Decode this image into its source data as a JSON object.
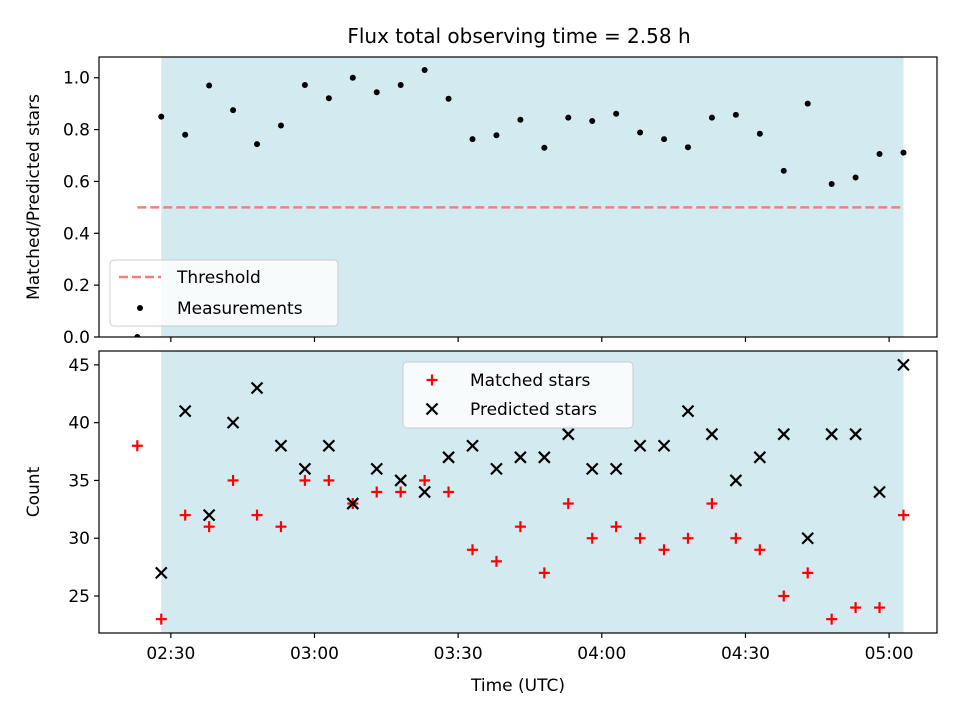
{
  "chart_data": [
    {
      "type": "scatter",
      "title": "Flux total observing time = 2.58 h",
      "xlabel": "",
      "ylabel": "Matched/Predicted stars",
      "xlim_minutes_since_midnight_utc": [
        135,
        310
      ],
      "ylim": [
        0,
        1.08
      ],
      "yticks": [
        0.0,
        0.2,
        0.4,
        0.6,
        0.8,
        1.0
      ],
      "ytick_labels": [
        "0.0",
        "0.2",
        "0.4",
        "0.6",
        "0.8",
        "1.0"
      ],
      "shaded_interval": [
        "02:28",
        "05:03"
      ],
      "shade_color": "#d4eaf1",
      "threshold": {
        "name": "Threshold",
        "value": 0.5,
        "x_range": [
          "02:23",
          "05:03"
        ],
        "color": "#f08080"
      },
      "series": [
        {
          "name": "Measurements",
          "color": "#000000",
          "x": [
            "02:23",
            "02:28",
            "02:33",
            "02:38",
            "02:43",
            "02:48",
            "02:53",
            "02:58",
            "03:03",
            "03:08",
            "03:13",
            "03:18",
            "03:23",
            "03:28",
            "03:33",
            "03:38",
            "03:43",
            "03:48",
            "03:53",
            "03:58",
            "04:03",
            "04:08",
            "04:13",
            "04:18",
            "04:23",
            "04:28",
            "04:33",
            "04:38",
            "04:43",
            "04:48",
            "04:53",
            "04:58",
            "05:03"
          ],
          "y": [
            0.0,
            0.85,
            0.78,
            0.97,
            0.875,
            0.744,
            0.816,
            0.972,
            0.921,
            1.0,
            0.944,
            0.972,
            1.03,
            0.919,
            0.763,
            0.778,
            0.838,
            0.73,
            0.846,
            0.833,
            0.861,
            0.789,
            0.763,
            0.732,
            0.846,
            0.857,
            0.784,
            0.641,
            0.9,
            0.59,
            0.615,
            0.706,
            0.711
          ]
        }
      ],
      "legend": {
        "placement": "lower-left",
        "entries": [
          "Threshold",
          "Measurements"
        ]
      }
    },
    {
      "type": "scatter",
      "title": "",
      "xlabel": "Time (UTC)",
      "ylabel": "Count",
      "xlim_minutes_since_midnight_utc": [
        135,
        310
      ],
      "xticks": [
        "02:30",
        "03:00",
        "03:30",
        "04:00",
        "04:30",
        "05:00"
      ],
      "ylim": [
        21.8,
        46.2
      ],
      "yticks": [
        25,
        30,
        35,
        40,
        45
      ],
      "ytick_labels": [
        "25",
        "30",
        "35",
        "40",
        "45"
      ],
      "shaded_interval": [
        "02:28",
        "05:03"
      ],
      "shade_color": "#d4eaf1",
      "series": [
        {
          "name": "Matched stars",
          "marker": "+",
          "color": "#ff0000",
          "x": [
            "02:23",
            "02:28",
            "02:33",
            "02:38",
            "02:43",
            "02:48",
            "02:53",
            "02:58",
            "03:03",
            "03:08",
            "03:13",
            "03:18",
            "03:23",
            "03:28",
            "03:33",
            "03:38",
            "03:43",
            "03:48",
            "03:53",
            "03:58",
            "04:03",
            "04:08",
            "04:13",
            "04:18",
            "04:23",
            "04:28",
            "04:33",
            "04:38",
            "04:43",
            "04:48",
            "04:53",
            "04:58",
            "05:03"
          ],
          "y": [
            38,
            23,
            32,
            31,
            35,
            32,
            31,
            35,
            35,
            33,
            34,
            34,
            35,
            34,
            29,
            28,
            31,
            27,
            33,
            30,
            31,
            30,
            29,
            30,
            33,
            30,
            29,
            25,
            27,
            23,
            24,
            24,
            32
          ]
        },
        {
          "name": "Predicted stars",
          "marker": "x",
          "color": "#000000",
          "x": [
            "02:28",
            "02:33",
            "02:38",
            "02:43",
            "02:48",
            "02:53",
            "02:58",
            "03:03",
            "03:08",
            "03:13",
            "03:18",
            "03:23",
            "03:28",
            "03:33",
            "03:38",
            "03:43",
            "03:48",
            "03:53",
            "03:58",
            "04:03",
            "04:08",
            "04:13",
            "04:18",
            "04:23",
            "04:28",
            "04:33",
            "04:38",
            "04:43",
            "04:48",
            "04:53",
            "04:58",
            "05:03"
          ],
          "y": [
            27,
            41,
            32,
            40,
            43,
            38,
            36,
            38,
            33,
            36,
            35,
            34,
            37,
            38,
            36,
            37,
            37,
            39,
            36,
            36,
            38,
            38,
            41,
            39,
            35,
            37,
            39,
            30,
            39,
            39,
            34,
            45
          ]
        }
      ],
      "legend": {
        "placement": "upper-center",
        "entries": [
          "Matched stars",
          "Predicted stars"
        ]
      }
    }
  ]
}
